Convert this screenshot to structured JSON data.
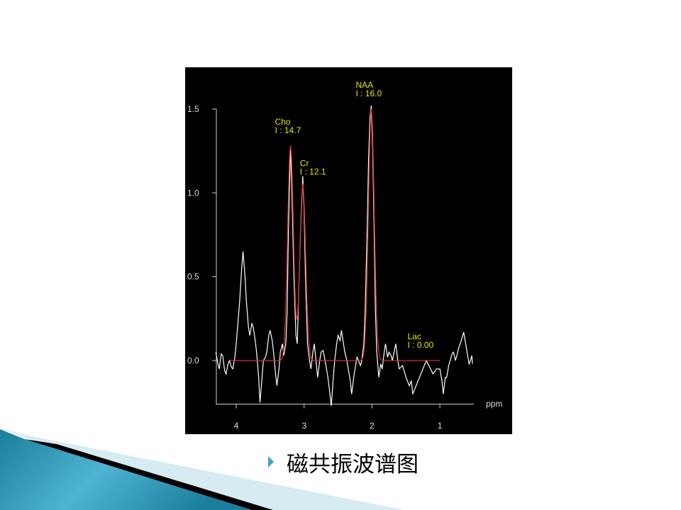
{
  "slide": {
    "caption": "磁共振波谱图",
    "accent_color": "#3aa6c4"
  },
  "chart_data": {
    "type": "line",
    "title": "",
    "xlabel": "ppm",
    "ylabel": "",
    "x_reversed": true,
    "xlim": [
      4.3,
      0.5
    ],
    "ylim": [
      -0.26,
      1.5
    ],
    "x_ticks": [
      4,
      3,
      2,
      1
    ],
    "x_tick_labels": [
      "4",
      "3",
      "2",
      "1"
    ],
    "y_ticks": [
      0.0,
      0.5,
      1.0,
      1.5
    ],
    "y_tick_labels": [
      "0.0",
      "0.5",
      "1.0",
      "1.5"
    ],
    "grid": false,
    "background": "#000000",
    "series": [
      {
        "kind": "spectrum",
        "color": "#ffffff",
        "points": [
          [
            4.3,
            0.05
          ],
          [
            4.27,
            -0.02
          ],
          [
            4.25,
            -0.05
          ],
          [
            4.22,
            0.04
          ],
          [
            4.2,
            0.03
          ],
          [
            4.17,
            -0.06
          ],
          [
            4.15,
            -0.08
          ],
          [
            4.12,
            -0.02
          ],
          [
            4.1,
            0.0
          ],
          [
            4.07,
            -0.04
          ],
          [
            4.05,
            -0.05
          ],
          [
            4.02,
            0.02
          ],
          [
            4.0,
            0.1
          ],
          [
            3.97,
            0.25
          ],
          [
            3.95,
            0.35
          ],
          [
            3.92,
            0.55
          ],
          [
            3.9,
            0.65
          ],
          [
            3.87,
            0.5
          ],
          [
            3.85,
            0.35
          ],
          [
            3.82,
            0.2
          ],
          [
            3.8,
            0.15
          ],
          [
            3.77,
            0.22
          ],
          [
            3.75,
            0.2
          ],
          [
            3.72,
            0.12
          ],
          [
            3.7,
            0.05
          ],
          [
            3.67,
            -0.1
          ],
          [
            3.65,
            -0.25
          ],
          [
            3.62,
            -0.1
          ],
          [
            3.6,
            0.0
          ],
          [
            3.57,
            0.02
          ],
          [
            3.55,
            0.05
          ],
          [
            3.52,
            0.15
          ],
          [
            3.5,
            0.18
          ],
          [
            3.47,
            0.12
          ],
          [
            3.45,
            0.05
          ],
          [
            3.42,
            -0.08
          ],
          [
            3.4,
            -0.15
          ],
          [
            3.37,
            -0.05
          ],
          [
            3.35,
            0.05
          ],
          [
            3.32,
            0.1
          ],
          [
            3.3,
            0.03
          ],
          [
            3.27,
            0.1
          ],
          [
            3.25,
            0.3
          ],
          [
            3.23,
            0.8
          ],
          [
            3.2,
            1.28
          ],
          [
            3.18,
            1.0
          ],
          [
            3.15,
            0.5
          ],
          [
            3.12,
            0.15
          ],
          [
            3.1,
            0.1
          ],
          [
            3.08,
            0.4
          ],
          [
            3.05,
            0.8
          ],
          [
            3.02,
            1.1
          ],
          [
            3.0,
            0.9
          ],
          [
            2.98,
            0.5
          ],
          [
            2.95,
            0.1
          ],
          [
            2.92,
            0.0
          ],
          [
            2.9,
            -0.05
          ],
          [
            2.87,
            0.05
          ],
          [
            2.85,
            0.1
          ],
          [
            2.82,
            -0.02
          ],
          [
            2.8,
            -0.1
          ],
          [
            2.77,
            0.0
          ],
          [
            2.75,
            0.05
          ],
          [
            2.72,
            0.06
          ],
          [
            2.7,
            0.02
          ],
          [
            2.67,
            -0.05
          ],
          [
            2.65,
            -0.1
          ],
          [
            2.62,
            -0.2
          ],
          [
            2.6,
            -0.27
          ],
          [
            2.57,
            -0.1
          ],
          [
            2.55,
            0.0
          ],
          [
            2.52,
            0.1
          ],
          [
            2.5,
            0.15
          ],
          [
            2.47,
            0.12
          ],
          [
            2.45,
            0.18
          ],
          [
            2.42,
            0.1
          ],
          [
            2.4,
            0.05
          ],
          [
            2.37,
            0.0
          ],
          [
            2.35,
            -0.05
          ],
          [
            2.32,
            -0.12
          ],
          [
            2.3,
            -0.2
          ],
          [
            2.27,
            -0.1
          ],
          [
            2.25,
            -0.05
          ],
          [
            2.22,
            0.02
          ],
          [
            2.2,
            0.0
          ],
          [
            2.17,
            -0.03
          ],
          [
            2.15,
            0.0
          ],
          [
            2.12,
            0.1
          ],
          [
            2.1,
            0.3
          ],
          [
            2.07,
            0.8
          ],
          [
            2.05,
            1.2
          ],
          [
            2.03,
            1.45
          ],
          [
            2.01,
            1.52
          ],
          [
            1.99,
            1.25
          ],
          [
            1.97,
            0.8
          ],
          [
            1.95,
            0.3
          ],
          [
            1.93,
            0.05
          ],
          [
            1.9,
            -0.1
          ],
          [
            1.87,
            -0.02
          ],
          [
            1.85,
            -0.05
          ],
          [
            1.82,
            0.05
          ],
          [
            1.8,
            0.1
          ],
          [
            1.77,
            0.02
          ],
          [
            1.75,
            0.05
          ],
          [
            1.72,
            0.03
          ],
          [
            1.7,
            0.0
          ],
          [
            1.67,
            0.06
          ],
          [
            1.65,
            0.1
          ],
          [
            1.62,
            0.0
          ],
          [
            1.6,
            -0.05
          ],
          [
            1.55,
            -0.03
          ],
          [
            1.5,
            -0.1
          ],
          [
            1.45,
            -0.15
          ],
          [
            1.42,
            -0.12
          ],
          [
            1.4,
            -0.2
          ],
          [
            1.35,
            -0.15
          ],
          [
            1.3,
            -0.1
          ],
          [
            1.25,
            -0.05
          ],
          [
            1.2,
            0.0
          ],
          [
            1.15,
            -0.04
          ],
          [
            1.1,
            -0.08
          ],
          [
            1.05,
            -0.05
          ],
          [
            1.0,
            -0.05
          ],
          [
            0.97,
            -0.12
          ],
          [
            0.95,
            -0.2
          ],
          [
            0.92,
            -0.1
          ],
          [
            0.9,
            -0.1
          ],
          [
            0.87,
            -0.03
          ],
          [
            0.85,
            0.0
          ],
          [
            0.82,
            0.04
          ],
          [
            0.8,
            0.05
          ],
          [
            0.77,
            0.0
          ],
          [
            0.75,
            0.03
          ],
          [
            0.72,
            0.08
          ],
          [
            0.7,
            0.1
          ],
          [
            0.67,
            0.14
          ],
          [
            0.65,
            0.17
          ],
          [
            0.62,
            0.1
          ],
          [
            0.6,
            0.05
          ],
          [
            0.57,
            -0.02
          ],
          [
            0.55,
            0.0
          ],
          [
            0.53,
            0.03
          ],
          [
            0.52,
            -0.02
          ]
        ]
      },
      {
        "kind": "fit",
        "color": "#d03030",
        "range": [
          4.1,
          1.0
        ],
        "peaks": [
          {
            "center": 3.2,
            "height": 1.28,
            "fwhm": 0.1
          },
          {
            "center": 3.02,
            "height": 1.05,
            "fwhm": 0.1
          },
          {
            "center": 2.01,
            "height": 1.5,
            "fwhm": 0.1
          }
        ]
      }
    ],
    "annotations": [
      {
        "name": "NAA",
        "value": "I : 16.0",
        "ppm": 2.01,
        "y": 1.5
      },
      {
        "name": "Cho",
        "value": "I : 14.7",
        "ppm": 3.2,
        "y": 1.28
      },
      {
        "name": "Cr",
        "value": "I : 12.1",
        "ppm": 3.02,
        "y": 1.05
      },
      {
        "name": "Lac",
        "value": "I : 0.00",
        "ppm": 1.33,
        "y": 0.0
      }
    ],
    "annotation_color": "#e6e600"
  }
}
